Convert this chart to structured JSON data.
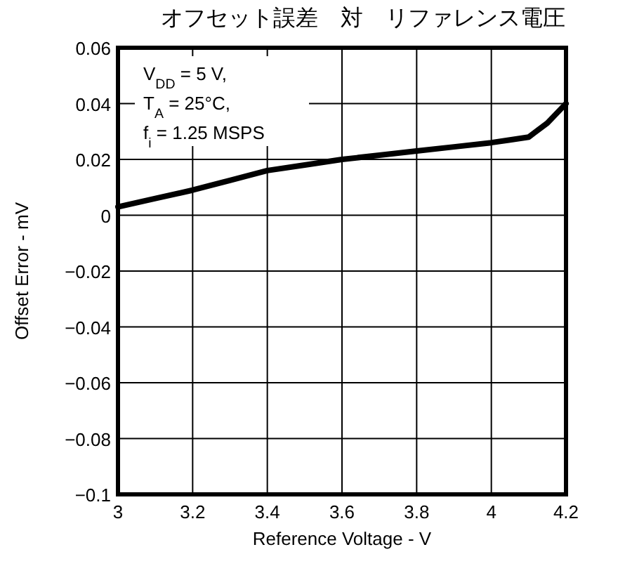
{
  "chart_data": {
    "type": "line",
    "title": "オフセット誤差　対　リファレンス電圧",
    "xlabel": "Reference Voltage - V",
    "ylabel": "Offset Error - mV",
    "x": [
      3,
      3.1,
      3.2,
      3.3,
      3.4,
      3.5,
      3.6,
      3.7,
      3.8,
      3.9,
      4.0,
      4.05,
      4.1,
      4.15,
      4.2
    ],
    "series": [
      {
        "color": "#000000",
        "values": [
          0.003,
          0.006,
          0.009,
          0.0125,
          0.016,
          0.018,
          0.02,
          0.0215,
          0.023,
          0.0245,
          0.026,
          0.027,
          0.028,
          0.033,
          0.04
        ]
      }
    ],
    "xlim": [
      3,
      4.2
    ],
    "xticks": [
      3,
      3.2,
      3.4,
      3.6,
      3.8,
      4,
      4.2
    ],
    "ylim": [
      -0.1,
      0.06
    ],
    "yticks": [
      {
        "value": -0.1,
        "label": "−0.1"
      },
      {
        "value": -0.08,
        "label": "−0.08"
      },
      {
        "value": -0.06,
        "label": "−0.06"
      },
      {
        "value": -0.04,
        "label": "−0.04"
      },
      {
        "value": -0.02,
        "label": "−0.02"
      },
      0,
      0.02,
      0.04,
      0.06
    ],
    "grid": true,
    "marker": "none",
    "line_style": "solid",
    "annotations": [
      "V$_{DD}$ = 5 V,",
      "T$_{A}$ = 25°C,",
      "f$_{i}$ = 1.25 MSPS"
    ]
  }
}
